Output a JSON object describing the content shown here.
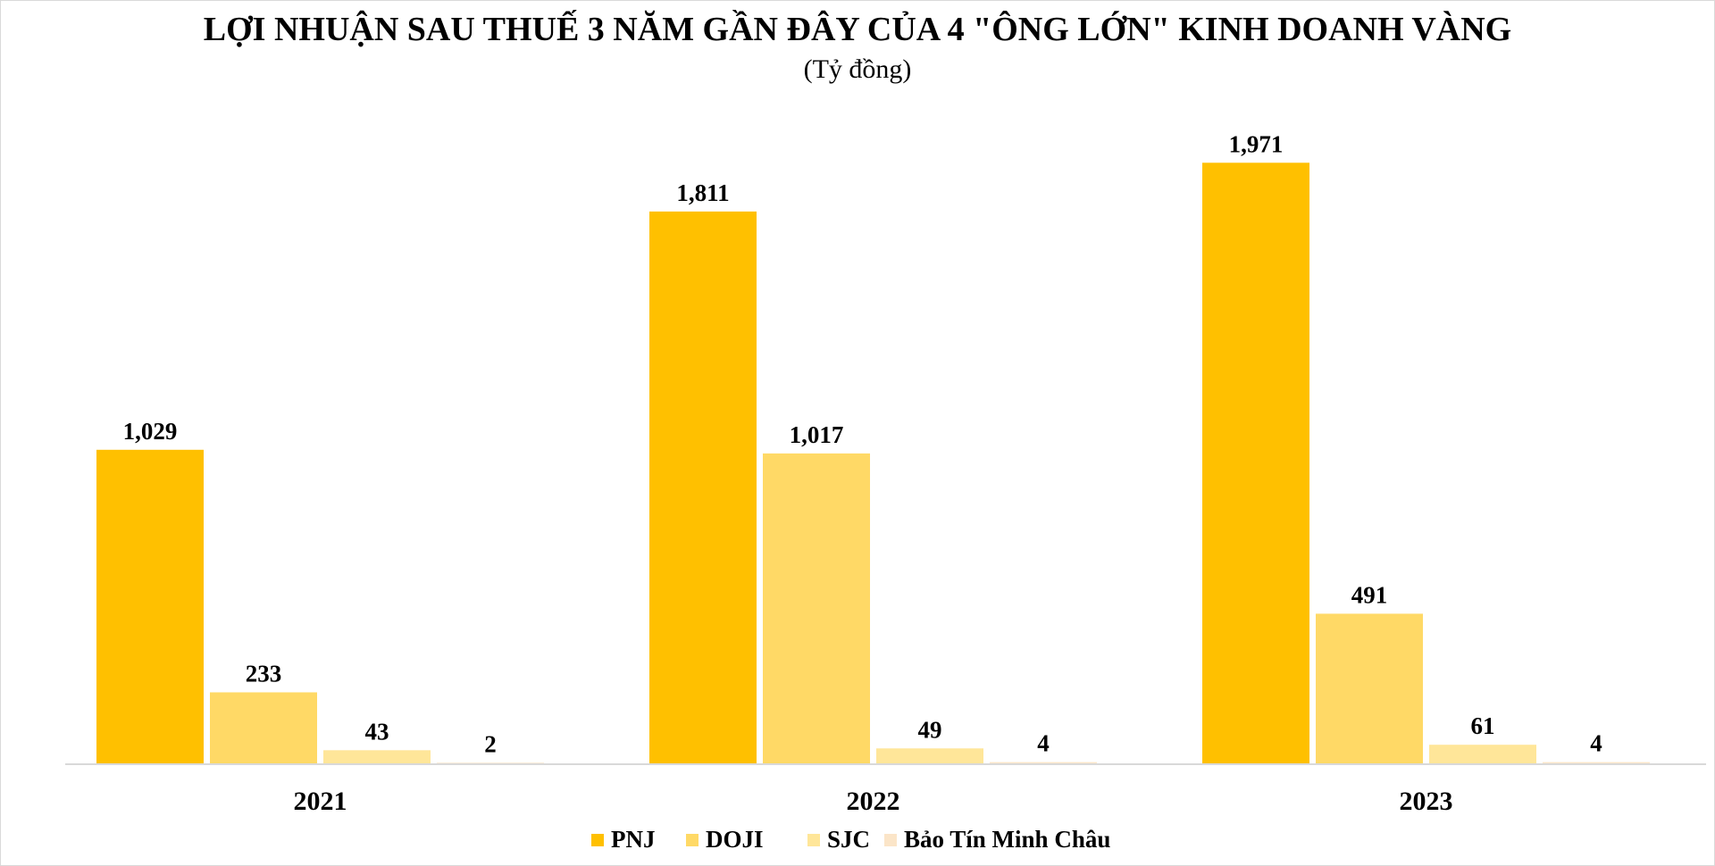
{
  "chart_data": {
    "type": "bar",
    "title": "LỢI NHUẬN SAU THUẾ 3 NĂM GẦN ĐÂY CỦA 4 \"ÔNG LỚN\" KINH DOANH VÀNG",
    "subtitle": "(Tỷ đồng)",
    "categories": [
      "2021",
      "2022",
      "2023"
    ],
    "series": [
      {
        "name": "PNJ",
        "values": [
          1029,
          1811,
          1971
        ],
        "labels": [
          "1,029",
          "1,811",
          "1,971"
        ],
        "color": "#FFC000"
      },
      {
        "name": "DOJI",
        "values": [
          233,
          1017,
          491
        ],
        "labels": [
          "233",
          "1,017",
          "491"
        ],
        "color": "#FFD966"
      },
      {
        "name": "SJC",
        "values": [
          43,
          49,
          61
        ],
        "labels": [
          "43",
          "49",
          "61"
        ],
        "color": "#FFE699"
      },
      {
        "name": "Bảo Tín Minh Châu",
        "values": [
          2,
          4,
          4
        ],
        "labels": [
          "2",
          "4",
          "4"
        ],
        "color": "#FBE5C8"
      }
    ],
    "xlabel": "",
    "ylabel": "",
    "ylim": [
      0,
      2100
    ],
    "grid": false,
    "legend_position": "bottom"
  }
}
